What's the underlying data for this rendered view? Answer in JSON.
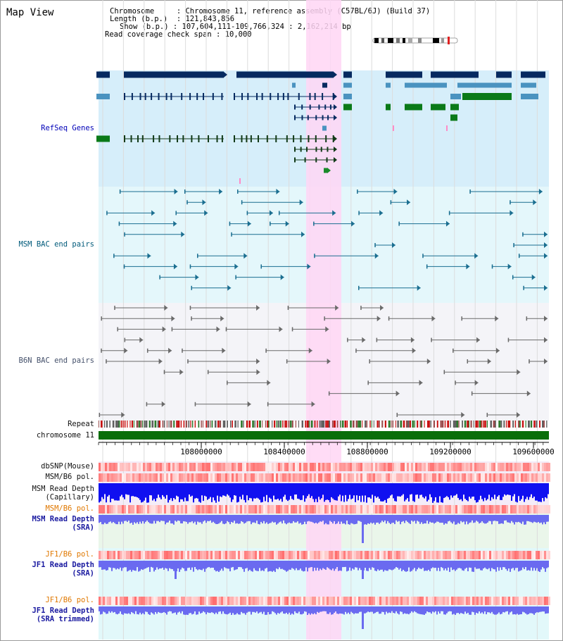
{
  "page_title": "Map View",
  "info": {
    "chromosome_key": "Chromosome",
    "chromosome_value": "Chromosome 11, reference assembly (C57BL/6J) (Build 37)",
    "length_key": "Length (b.p.)",
    "length_value": "121,843,856",
    "show_key": "Show (b.p.)",
    "show_value": "107,604,111-109,766,324 : 2,162,214 bp",
    "span_key": "Read coverage check span",
    "span_value": "10,000"
  },
  "tracks": {
    "refseq": "RefSeq Genes",
    "msm_bac": "MSM BAC end pairs",
    "b6n_bac": "B6N BAC end pairs",
    "repeat": "Repeat",
    "chromosome": "chromosome 11",
    "dbsnp": "dbSNP(Mouse)",
    "msm_b6_pol_1": "MSM/B6 pol.",
    "msm_depth_cap_1": "MSM Read Depth",
    "msm_depth_cap_2": "(Capillary)",
    "msm_b6_pol_2": "MSM/B6 pol.",
    "msm_depth_sra_1": "MSM Read Depth",
    "msm_depth_sra_2": "(SRA)",
    "jf1_b6_pol_1": "JF1/B6 pol.",
    "jf1_depth_sra_1": "JF1 Read Depth",
    "jf1_depth_sra_2": "(SRA)",
    "jf1_b6_pol_2": "JF1/B6 pol.",
    "jf1_depth_trim_1": "JF1 Read Depth",
    "jf1_depth_trim_2": "(SRA trimmed)"
  },
  "axis": {
    "ticks": [
      "108000000",
      "108400000",
      "108800000",
      "109200000",
      "109600000"
    ]
  },
  "colors": {
    "highlight": "#ffd6f4",
    "refseq_bg": "#d6eefa",
    "msm_bg": "#e4f7fb",
    "b6n_bg": "#f4f4f8",
    "gene_navy": "#062a60",
    "gene_teal": "#4a93c0",
    "gene_green": "#0a7a18",
    "msm_line": "#1a6e90",
    "b6n_line": "#6a6a6a",
    "chrom_green": "#0a6e0a",
    "depth_cap": "#1010f0",
    "depth_sra": "#6a6af0"
  }
}
